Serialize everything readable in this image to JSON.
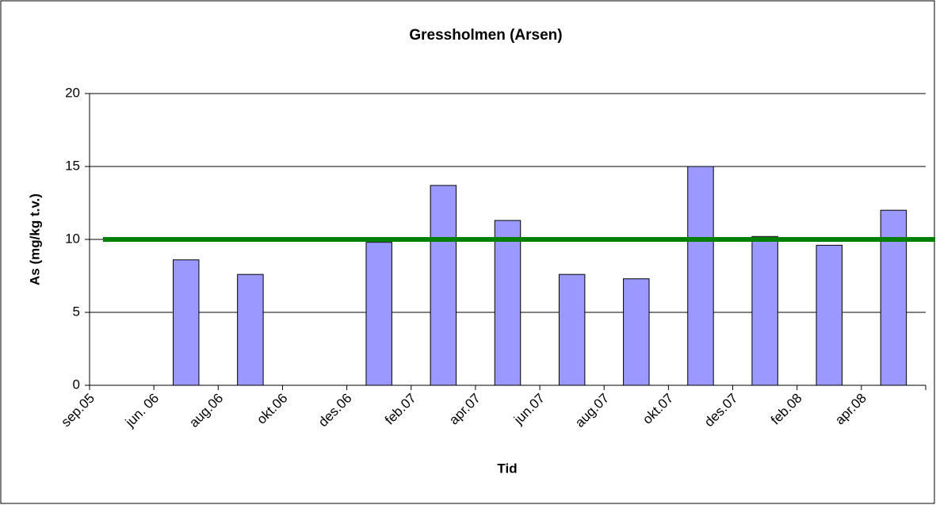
{
  "chart_data": {
    "type": "bar",
    "title": "Gressholmen (Arsen)",
    "x_label": "Tid",
    "y_label": "As (mg/kg t.v.)",
    "categories": [
      "sep.05",
      "jun. 06",
      "aug.06",
      "okt.06",
      "des.06",
      "feb.07",
      "apr.07",
      "jun.07",
      "aug.07",
      "okt.07",
      "des.07",
      "feb.08",
      "apr.08"
    ],
    "values": [
      null,
      8.6,
      7.6,
      null,
      9.8,
      13.7,
      11.3,
      7.6,
      7.3,
      15.0,
      10.2,
      9.6,
      12.0
    ],
    "color": "#9999ff",
    "threshold": {
      "value": 10,
      "color": "#008000"
    },
    "ylim": [
      0,
      20
    ],
    "yticks": [
      0,
      5,
      10,
      15,
      20
    ],
    "grid": true
  }
}
